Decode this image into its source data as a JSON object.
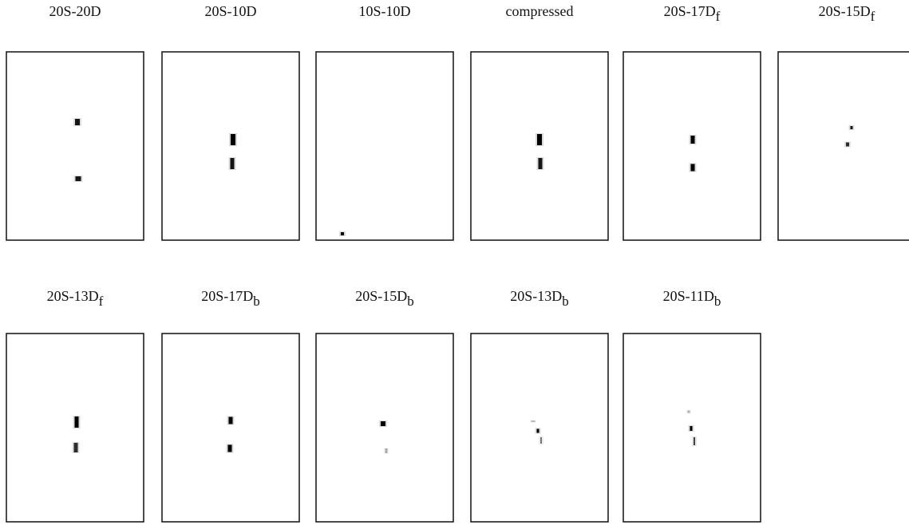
{
  "panels": [
    {
      "label": "20S-20D"
    },
    {
      "label": "20S-10D"
    },
    {
      "label": "10S-10D"
    },
    {
      "label": "compressed"
    },
    {
      "label": "20S-17D",
      "subscript": "f"
    },
    {
      "label": "20S-15D",
      "subscript": "f"
    },
    {
      "label": "20S-13D",
      "subscript": "f"
    },
    {
      "label": "20S-17D",
      "subscript": "b"
    },
    {
      "label": "20S-15D",
      "subscript": "b"
    },
    {
      "label": "20S-13D",
      "subscript": "b"
    },
    {
      "label": "20S-11D",
      "subscript": "b"
    }
  ]
}
